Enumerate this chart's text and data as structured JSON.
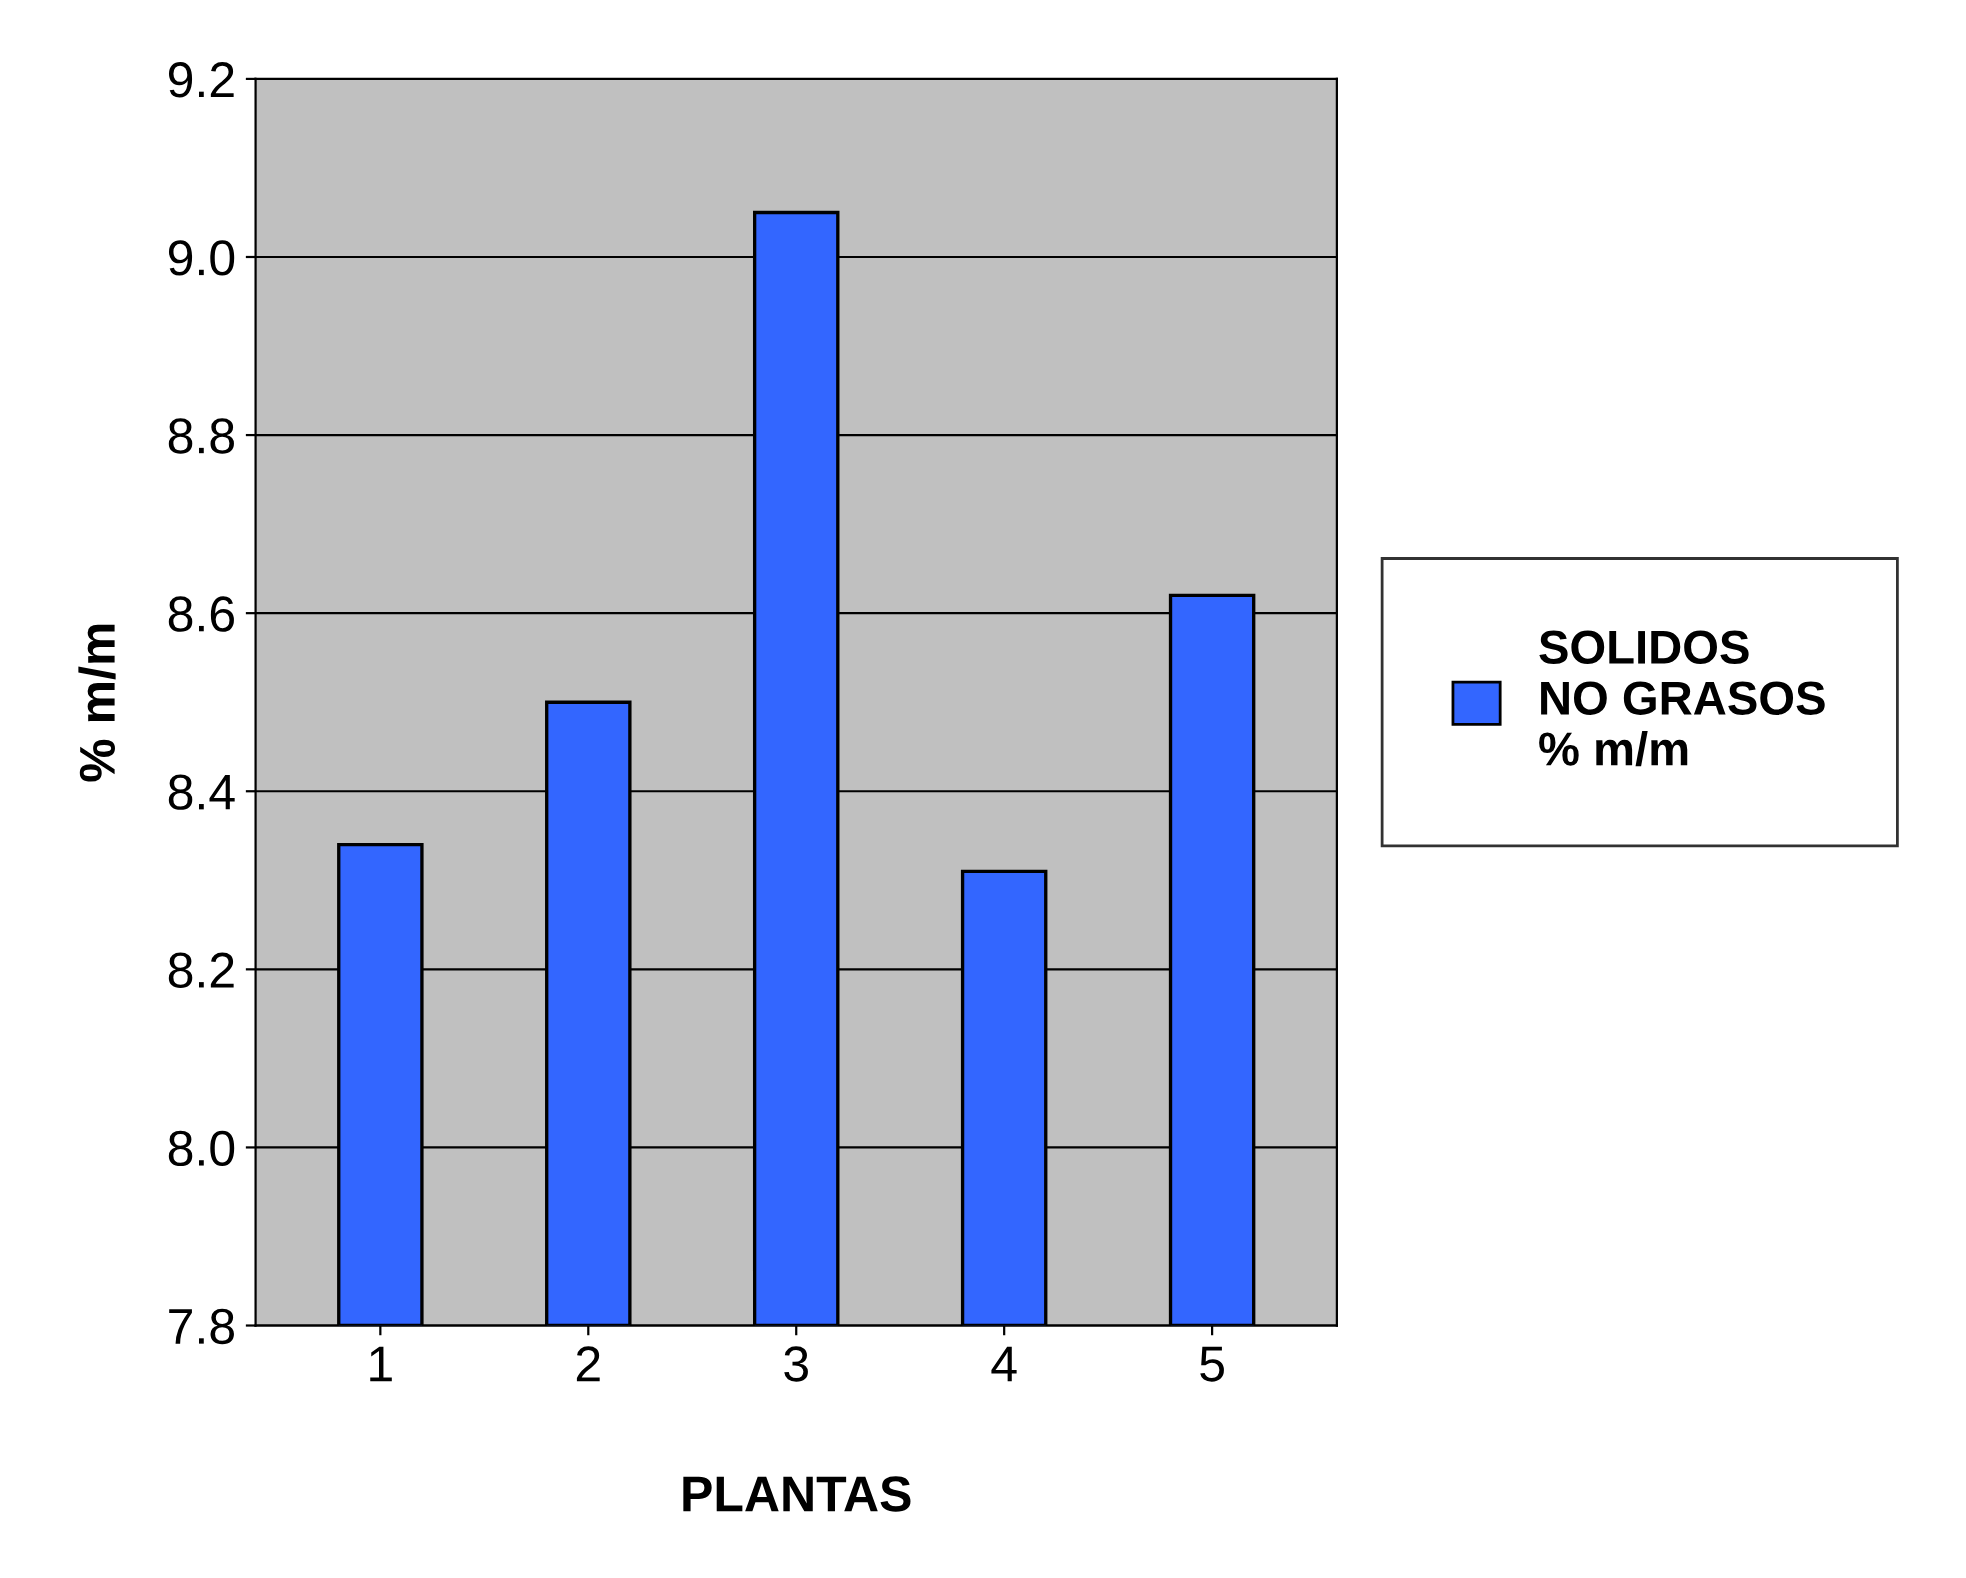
{
  "chart_data": {
    "type": "bar",
    "xlabel": "PLANTAS",
    "ylabel": "% m/m",
    "categories": [
      "1",
      "2",
      "3",
      "4",
      "5"
    ],
    "series": [
      {
        "name": "SOLIDOS NO GRASOS % m/m",
        "color": "#3366ff",
        "values": [
          8.34,
          8.5,
          9.05,
          8.31,
          8.62
        ]
      }
    ],
    "ylim": [
      7.8,
      9.2
    ],
    "yticks": [
      7.8,
      {
        "value": 8.0,
        "label": "8.0"
      },
      8.2,
      8.4,
      8.6,
      8.8,
      {
        "value": 9.0,
        "label": "9.0"
      },
      9.2
    ],
    "grid": "y",
    "legend": "right"
  }
}
